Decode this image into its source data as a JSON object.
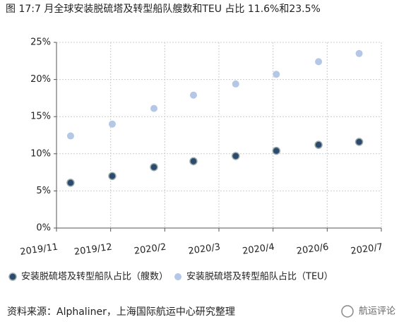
{
  "chart_data": {
    "type": "scatter",
    "title": "图 17:7 月全球安装脱硫塔及转型船队艘数和TEU 占比 11.6%和23.5%",
    "source": "资料来源：Alphaliner，上海国际航运中心研究整理",
    "watermark": "航运评论",
    "xlim": [
      0,
      6
    ],
    "xticks": [
      {
        "value": 0,
        "label": "2019/11"
      },
      {
        "value": 1,
        "label": "2019/12"
      },
      {
        "value": 2,
        "label": "2020/2"
      },
      {
        "value": 3,
        "label": "2020/3"
      },
      {
        "value": 4,
        "label": "2020/4"
      },
      {
        "value": 5,
        "label": "2020/6"
      },
      {
        "value": 6,
        "label": "2020/7"
      }
    ],
    "ylim": [
      0,
      25
    ],
    "yticks": [
      {
        "value": 0,
        "label": "0%"
      },
      {
        "value": 5,
        "label": "5%"
      },
      {
        "value": 10,
        "label": "10%"
      },
      {
        "value": 15,
        "label": "15%"
      },
      {
        "value": 20,
        "label": "20%"
      },
      {
        "value": 25,
        "label": "25%"
      }
    ],
    "grid": true,
    "x": [
      0.26,
      1.03,
      1.8,
      2.53,
      3.31,
      4.06,
      4.84,
      5.59
    ],
    "series": [
      {
        "name": "安装脱硫塔及转型船队占比（艘数）",
        "color": "#2c4a6e",
        "values": [
          6.1,
          7.0,
          8.2,
          9.0,
          9.7,
          10.4,
          11.2,
          11.6
        ]
      },
      {
        "name": "安装脱硫塔及转型船队占比（TEU）",
        "color": "#b4c7e7",
        "values": [
          12.4,
          14.0,
          16.1,
          17.9,
          19.4,
          20.7,
          22.4,
          23.5
        ]
      }
    ]
  }
}
